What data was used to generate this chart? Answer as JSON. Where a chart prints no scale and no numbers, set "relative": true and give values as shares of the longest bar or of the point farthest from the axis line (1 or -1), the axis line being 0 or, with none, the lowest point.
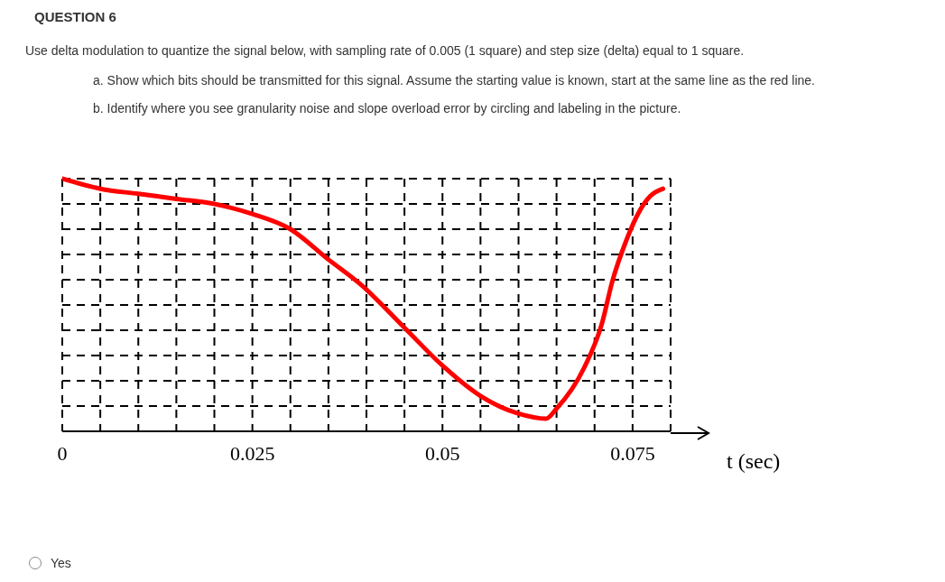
{
  "chart_data": {
    "type": "line",
    "title": "QUESTION 6",
    "subtitle": "Use delta modulation to quantize the signal below, with sampling rate of 0.005 (1 square) and step size (delta) equal to 1 square.",
    "annotations": [
      "a. Show which bits should be transmitted for this signal. Assume the starting value is known, start at the same line as the red line.",
      "b. Identify where you see granularity noise and slope overload error by circling and labeling in the picture.",
      "Yes"
    ],
    "xlabel": "t (sec)",
    "relative": true,
    "grid": true,
    "marker": "none",
    "line_style": "solid",
    "xlim": [
      0,
      0.08
    ],
    "xticks": [
      0,
      {
        "value": 0.005,
        "label": null
      },
      {
        "value": 0.01,
        "label": null
      },
      {
        "value": 0.015,
        "label": null
      },
      {
        "value": 0.02,
        "label": null
      },
      0.025,
      {
        "value": 0.03,
        "label": null
      },
      {
        "value": 0.035,
        "label": null
      },
      {
        "value": 0.04,
        "label": null
      },
      {
        "value": 0.045,
        "label": null
      },
      0.05,
      {
        "value": 0.055,
        "label": null
      },
      {
        "value": 0.06,
        "label": null
      },
      {
        "value": 0.065,
        "label": null
      },
      {
        "value": 0.07,
        "label": null
      },
      0.075,
      {
        "value": 0.08,
        "label": null
      }
    ],
    "series": [
      {
        "color": "#ff0000",
        "x": [
          0,
          0.005,
          0.01,
          0.015,
          0.02,
          0.025,
          0.03,
          0.035,
          0.0393,
          0.045,
          0.05,
          0.055,
          0.06,
          0.0636,
          0.065,
          0.0686,
          0.071,
          0.0723,
          0.0741,
          0.0757,
          0.0773,
          0.079
        ],
        "values": [
          1.0,
          0.96,
          0.94,
          0.92,
          0.9,
          0.86,
          0.8,
          0.68,
          0.58,
          0.41,
          0.26,
          0.14,
          0.07,
          0.05,
          0.09,
          0.25,
          0.43,
          0.59,
          0.75,
          0.86,
          0.93,
          0.96
        ]
      }
    ]
  }
}
